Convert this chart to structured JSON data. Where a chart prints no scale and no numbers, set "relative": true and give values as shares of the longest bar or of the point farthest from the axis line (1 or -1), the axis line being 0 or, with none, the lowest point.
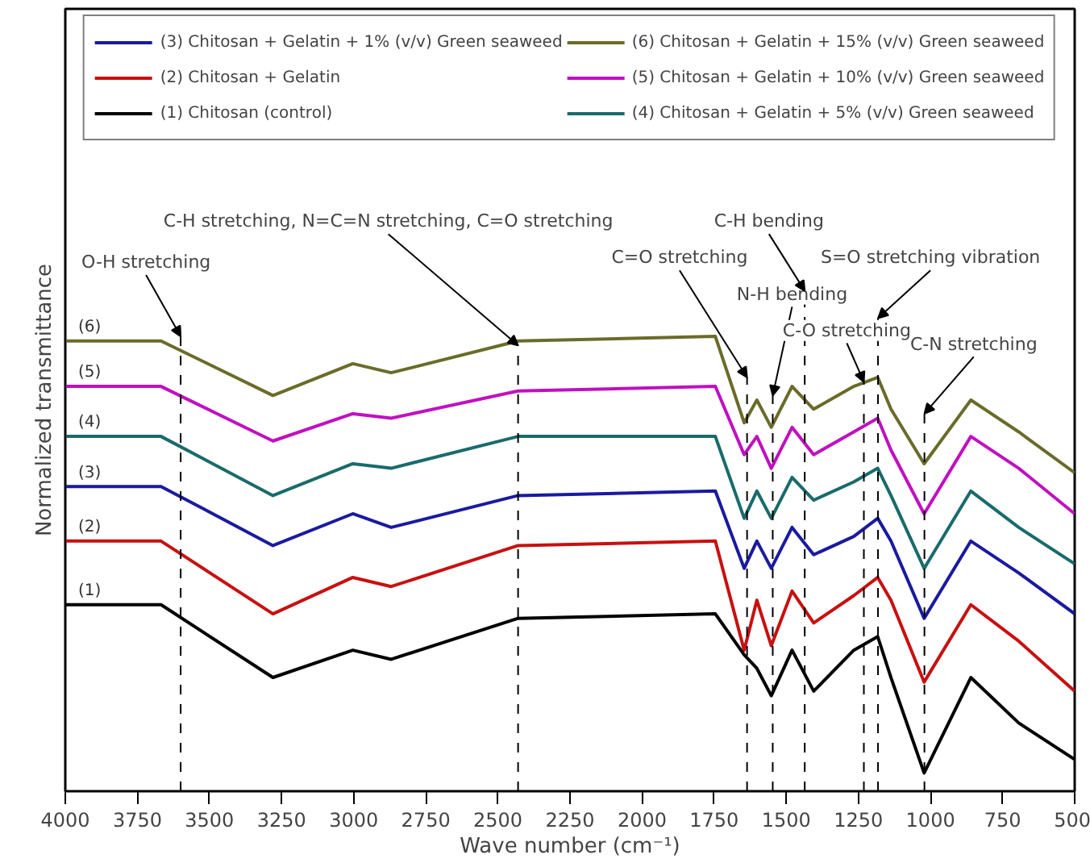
{
  "chart_data": {
    "type": "line",
    "relative": true,
    "xlabel": "Wave number (cm⁻¹)",
    "ylabel": "Normalized transmittance",
    "x": [
      4000,
      3668,
      3280,
      3003,
      2870,
      2430,
      1746,
      1646,
      1602,
      1552,
      1480,
      1405,
      1266,
      1183,
      1137,
      1022,
      860,
      694,
      500
    ],
    "xlim": [
      4000,
      500
    ],
    "xticks": [
      4000,
      3750,
      3500,
      3250,
      3000,
      2750,
      2500,
      2250,
      2000,
      1750,
      1500,
      1250,
      1000,
      750,
      500
    ],
    "tick_labels": "x",
    "grid": false,
    "legend": "top",
    "marker": "none",
    "line_style": "solid",
    "series": [
      {
        "name": "(3) Chitosan + Gelatin + 1% (v/v) Green seaweed",
        "color": "#1a1aa0",
        "values": [
          0.67,
          0.67,
          0.54,
          0.61,
          0.58,
          0.65,
          0.66,
          0.49,
          0.55,
          0.49,
          0.58,
          0.52,
          0.56,
          0.6,
          0.55,
          0.38,
          0.55,
          0.48,
          0.39
        ]
      },
      {
        "name": "(6) Chitosan + Gelatin + 15% (v/v) Green seaweed",
        "color": "#6b6b2a",
        "values": [
          0.99,
          0.99,
          0.87,
          0.94,
          0.92,
          0.99,
          1.0,
          0.81,
          0.86,
          0.8,
          0.89,
          0.84,
          0.89,
          0.91,
          0.84,
          0.72,
          0.86,
          0.79,
          0.7
        ]
      },
      {
        "name": "(2) Chitosan + Gelatin",
        "color": "#c81010",
        "values": [
          0.55,
          0.55,
          0.39,
          0.47,
          0.45,
          0.54,
          0.55,
          0.31,
          0.42,
          0.32,
          0.44,
          0.37,
          0.43,
          0.47,
          0.42,
          0.24,
          0.41,
          0.33,
          0.22
        ]
      },
      {
        "name": "(5) Chitosan + Gelatin + 10% (v/v) Green seaweed",
        "color": "#c010c0",
        "values": [
          0.89,
          0.89,
          0.77,
          0.83,
          0.82,
          0.88,
          0.89,
          0.74,
          0.78,
          0.71,
          0.8,
          0.74,
          0.79,
          0.82,
          0.75,
          0.61,
          0.78,
          0.71,
          0.61
        ]
      },
      {
        "name": "(1) Chitosan (control)",
        "color": "#000000",
        "values": [
          0.41,
          0.41,
          0.25,
          0.31,
          0.29,
          0.38,
          0.39,
          0.3,
          0.27,
          0.21,
          0.31,
          0.22,
          0.31,
          0.34,
          0.25,
          0.04,
          0.25,
          0.15,
          0.07
        ]
      },
      {
        "name": "(4) Chitosan + Gelatin + 5% (v/v) Green seaweed",
        "color": "#1a6b6b",
        "values": [
          0.78,
          0.78,
          0.65,
          0.72,
          0.71,
          0.78,
          0.78,
          0.6,
          0.66,
          0.6,
          0.69,
          0.64,
          0.68,
          0.71,
          0.65,
          0.49,
          0.66,
          0.58,
          0.5
        ]
      }
    ],
    "ref_lines": [
      {
        "axis": "x",
        "value": 3600,
        "label": "O-H stretching",
        "color": "#000000",
        "line_style": "dashed"
      },
      {
        "axis": "x",
        "value": 2430,
        "label": "C-H stretching, N=C=N stretching, C=O stretching",
        "color": "#000000",
        "line_style": "dashed"
      },
      {
        "axis": "x",
        "value": 1636,
        "label": "C=O stretching",
        "color": "#000000",
        "line_style": "dashed"
      },
      {
        "axis": "x",
        "value": 1547,
        "label": "N-H bending",
        "color": "#000000",
        "line_style": "dashed"
      },
      {
        "axis": "x",
        "value": 1436,
        "label": "C-H bending",
        "color": "#000000",
        "line_style": "dashed"
      },
      {
        "axis": "x",
        "value": 1231,
        "label": "C-O stretching",
        "color": "#000000",
        "line_style": "dashed"
      },
      {
        "axis": "x",
        "value": 1182,
        "label": "S=O stretching vibration",
        "color": "#000000",
        "line_style": "dashed"
      },
      {
        "axis": "x",
        "value": 1021,
        "label": "C-N stretching",
        "color": "#000000",
        "line_style": "dashed"
      }
    ],
    "annotations": [
      "(1)",
      "(2)",
      "(3)",
      "(4)",
      "(5)",
      "(6)"
    ]
  }
}
